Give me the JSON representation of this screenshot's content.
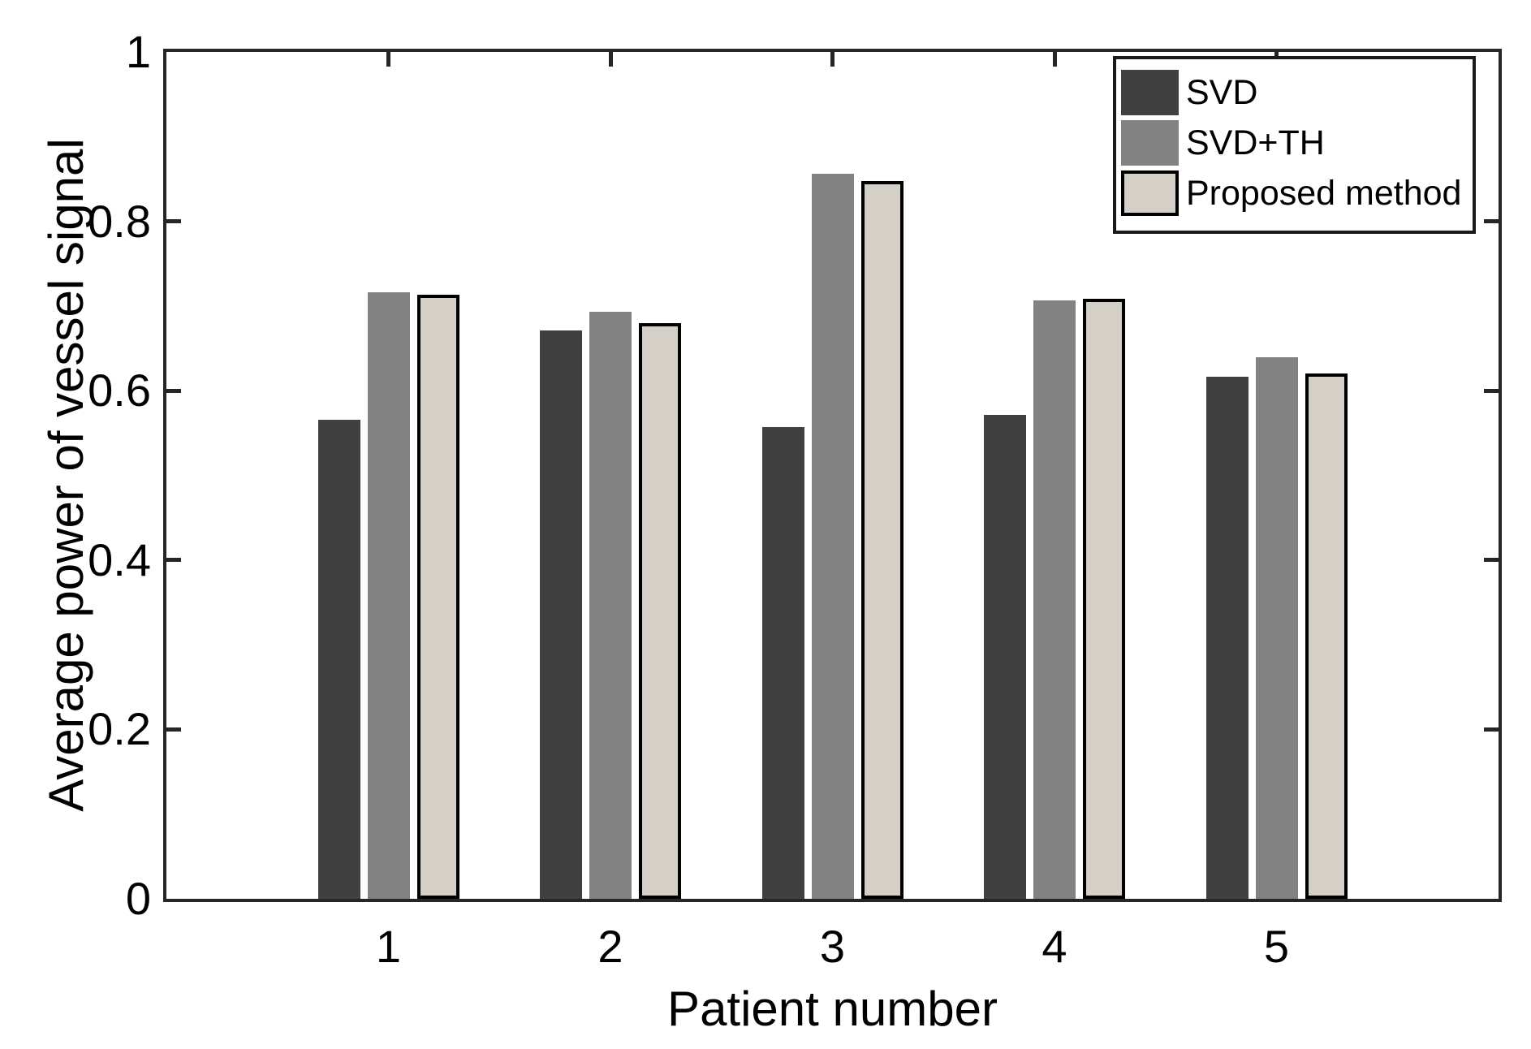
{
  "chart_data": {
    "type": "bar",
    "title": "",
    "xlabel": "Patient number",
    "ylabel": "Average power of vessel signal",
    "categories": [
      "1",
      "2",
      "3",
      "4",
      "5"
    ],
    "series": [
      {
        "name": "SVD",
        "color": "#404040",
        "edge_color": null,
        "values": [
          0.566,
          0.671,
          0.557,
          0.571,
          0.617
        ]
      },
      {
        "name": "SVD+TH",
        "color": "#828282",
        "edge_color": null,
        "values": [
          0.716,
          0.693,
          0.856,
          0.707,
          0.64
        ]
      },
      {
        "name": "Proposed method",
        "color": "#d4d0c8",
        "edge_color": "#000000",
        "values": [
          0.713,
          0.68,
          0.848,
          0.709,
          0.62
        ]
      }
    ],
    "ylim": [
      0,
      1
    ],
    "yticks": [
      0,
      0.2,
      0.4,
      0.6,
      0.8,
      1
    ],
    "ytick_labels": [
      "0",
      "0.2",
      "0.4",
      "0.6",
      "0.8",
      "1"
    ],
    "xlim": [
      0,
      6
    ],
    "grid": false,
    "legend": {
      "position": "top-right",
      "entries": [
        "SVD",
        "SVD+TH",
        "Proposed method"
      ]
    },
    "axis_color": "#262626",
    "text_color": "#000000",
    "background_color": "#ffffff"
  }
}
